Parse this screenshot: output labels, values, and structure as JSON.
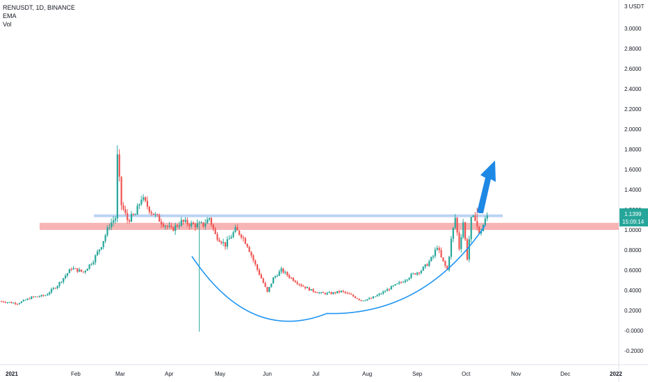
{
  "header": {
    "symbol_line": "RENUSDT, 1D, BINANCE",
    "indicator_1": "EMA",
    "indicator_2": "Vol"
  },
  "price_axis": {
    "unit_label": "3 USDT"
  },
  "price_badge": {
    "price": "1.1399",
    "countdown": "15:09:14",
    "color": "#26a69a"
  },
  "colors": {
    "up": "#26a69a",
    "down": "#ef5350",
    "resistance_band": "#f6a7a7",
    "top_line": "#b2cdf3",
    "curve": "#2196f3",
    "arrow": "#1e88e5"
  },
  "chart_data": {
    "type": "candlestick",
    "title": "RENUSDT, 1D, BINANCE",
    "ylim": [
      -0.3,
      3.1
    ],
    "y_ticks": [
      "3.0000",
      "2.8000",
      "2.6000",
      "2.4000",
      "2.2000",
      "2.0000",
      "1.8000",
      "1.6000",
      "1.4000",
      "1.2000",
      "1.0000",
      "0.8000",
      "0.6000",
      "0.4000",
      "0.2000",
      "-0.0000",
      "-0.2000"
    ],
    "x_ticks": [
      {
        "label": "2021",
        "bold": true
      },
      {
        "label": "Feb",
        "bold": false
      },
      {
        "label": "Mar",
        "bold": false
      },
      {
        "label": "Apr",
        "bold": false
      },
      {
        "label": "May",
        "bold": false
      },
      {
        "label": "Jun",
        "bold": false
      },
      {
        "label": "Jul",
        "bold": false
      },
      {
        "label": "Aug",
        "bold": false
      },
      {
        "label": "Sep",
        "bold": false
      },
      {
        "label": "Oct",
        "bold": false
      },
      {
        "label": "Nov",
        "bold": false
      },
      {
        "label": "Dec",
        "bold": false
      },
      {
        "label": "2022",
        "bold": true
      }
    ],
    "anchors": [
      [
        0,
        0.29
      ],
      [
        8,
        0.27
      ],
      [
        15,
        0.33
      ],
      [
        22,
        0.35
      ],
      [
        28,
        0.45
      ],
      [
        35,
        0.62
      ],
      [
        41,
        0.58
      ],
      [
        46,
        0.7
      ],
      [
        50,
        0.85
      ],
      [
        54,
        1.05
      ],
      [
        57,
        1.12
      ],
      [
        58,
        1.72
      ],
      [
        60,
        1.25
      ],
      [
        63,
        1.1
      ],
      [
        67,
        1.15
      ],
      [
        70,
        1.32
      ],
      [
        75,
        1.18
      ],
      [
        80,
        1.08
      ],
      [
        85,
        1.0
      ],
      [
        90,
        1.08
      ],
      [
        96,
        1.05
      ],
      [
        101,
        1.05
      ],
      [
        104,
        1.12
      ],
      [
        107,
        0.95
      ],
      [
        112,
        0.85
      ],
      [
        117,
        1.0
      ],
      [
        120,
        0.95
      ],
      [
        123,
        0.85
      ],
      [
        127,
        0.65
      ],
      [
        130,
        0.52
      ],
      [
        133,
        0.38
      ],
      [
        136,
        0.52
      ],
      [
        140,
        0.6
      ],
      [
        145,
        0.52
      ],
      [
        150,
        0.45
      ],
      [
        155,
        0.4
      ],
      [
        160,
        0.37
      ],
      [
        165,
        0.37
      ],
      [
        170,
        0.39
      ],
      [
        175,
        0.35
      ],
      [
        180,
        0.3
      ],
      [
        185,
        0.32
      ],
      [
        190,
        0.37
      ],
      [
        195,
        0.43
      ],
      [
        200,
        0.48
      ],
      [
        205,
        0.55
      ],
      [
        210,
        0.6
      ],
      [
        213,
        0.66
      ],
      [
        216,
        0.74
      ],
      [
        218,
        0.84
      ],
      [
        220,
        0.72
      ],
      [
        223,
        0.6
      ],
      [
        225,
        0.9
      ],
      [
        227,
        1.12
      ],
      [
        229,
        0.82
      ],
      [
        231,
        1.08
      ],
      [
        233,
        0.72
      ],
      [
        235,
        1.1
      ],
      [
        237,
        1.12
      ],
      [
        239,
        0.95
      ],
      [
        241,
        1.05
      ],
      [
        243,
        1.14
      ]
    ],
    "candles": [],
    "annotations": {
      "resistance_zone": [
        1.0,
        1.07
      ],
      "top_line": 1.14,
      "cup_bottom": 0.17
    }
  }
}
